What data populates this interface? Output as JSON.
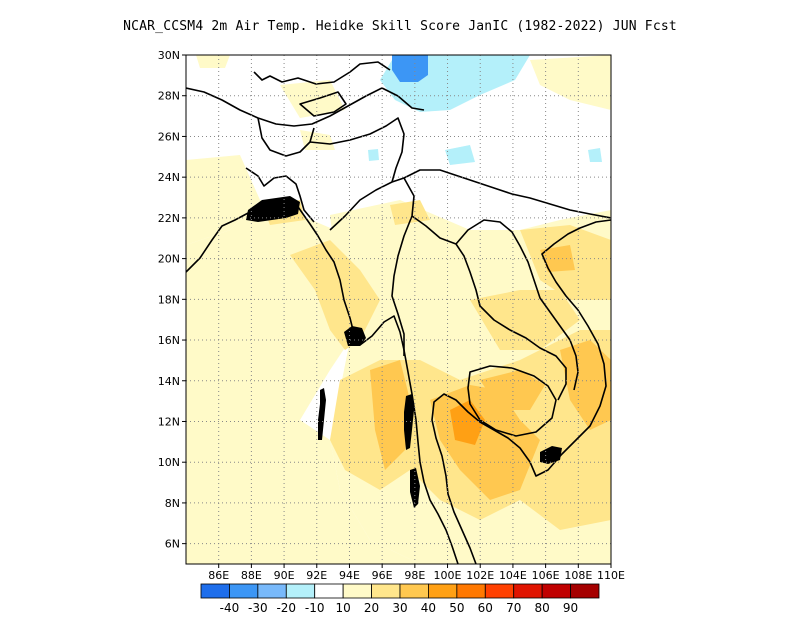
{
  "title": "NCAR_CCSM4  2m Air Temp. Heidke Skill Score JanIC (1982-2022) JUN Fcst",
  "map": {
    "lon_range": [
      84,
      110
    ],
    "lat_range": [
      5,
      30
    ],
    "lon_ticks": [
      {
        "value": 86,
        "label": "86E"
      },
      {
        "value": 88,
        "label": "88E"
      },
      {
        "value": 90,
        "label": "90E"
      },
      {
        "value": 92,
        "label": "92E"
      },
      {
        "value": 94,
        "label": "94E"
      },
      {
        "value": 96,
        "label": "96E"
      },
      {
        "value": 98,
        "label": "98E"
      },
      {
        "value": 100,
        "label": "100E"
      },
      {
        "value": 102,
        "label": "102E"
      },
      {
        "value": 104,
        "label": "104E"
      },
      {
        "value": 106,
        "label": "106E"
      },
      {
        "value": 108,
        "label": "108E"
      },
      {
        "value": 110,
        "label": "110E"
      }
    ],
    "lat_ticks": [
      {
        "value": 6,
        "label": "6N"
      },
      {
        "value": 8,
        "label": "8N"
      },
      {
        "value": 10,
        "label": "10N"
      },
      {
        "value": 12,
        "label": "12N"
      },
      {
        "value": 14,
        "label": "14N"
      },
      {
        "value": 16,
        "label": "16N"
      },
      {
        "value": 18,
        "label": "18N"
      },
      {
        "value": 20,
        "label": "20N"
      },
      {
        "value": 22,
        "label": "22N"
      },
      {
        "value": 24,
        "label": "24N"
      },
      {
        "value": 26,
        "label": "26N"
      },
      {
        "value": 28,
        "label": "28N"
      },
      {
        "value": 30,
        "label": "30N"
      }
    ],
    "grid": "dotted",
    "colorbar": {
      "colors": [
        "#1e6eeb",
        "#3c96f5",
        "#78b9fa",
        "#b4f0fa",
        "#ffffff",
        "#fffac8",
        "#ffe68c",
        "#ffc850",
        "#ffa014",
        "#ff7800",
        "#ff4000",
        "#e01400",
        "#c00000",
        "#a50000"
      ],
      "labels": [
        "-40",
        "-30",
        "-20",
        "-10",
        "10",
        "20",
        "30",
        "40",
        "50",
        "60",
        "70",
        "80",
        "90"
      ]
    }
  },
  "chart_data": {
    "type": "heatmap",
    "title": "NCAR_CCSM4  2m Air Temp. Heidke Skill Score JanIC (1982-2022) JUN Fcst",
    "x_ticks": [
      "86E",
      "88E",
      "90E",
      "92E",
      "94E",
      "96E",
      "98E",
      "100E",
      "102E",
      "104E",
      "106E",
      "108E",
      "110E"
    ],
    "y_ticks": [
      "6N",
      "8N",
      "10N",
      "12N",
      "14N",
      "16N",
      "18N",
      "20N",
      "22N",
      "24N",
      "26N",
      "28N",
      "30N"
    ],
    "xlim": [
      84,
      110
    ],
    "ylim": [
      5,
      30
    ],
    "legend": "bottom",
    "legend_position": "bottom",
    "grid": true,
    "cells": [
      {
        "lon": [
          86,
          92
        ],
        "lat": [
          20,
          25
        ],
        "value": 10
      },
      {
        "lon": [
          84,
          87
        ],
        "lat": [
          10,
          19
        ],
        "value": 10
      },
      {
        "lon": [
          92,
          96
        ],
        "lat": [
          5,
          17
        ],
        "value": 10
      },
      {
        "lon": [
          88,
          96
        ],
        "lat": [
          5,
          11
        ],
        "value": 15
      },
      {
        "lon": [
          94,
          98
        ],
        "lat": [
          7,
          16
        ],
        "value": 20
      },
      {
        "lon": [
          96,
          99
        ],
        "lat": [
          9,
          13
        ],
        "value": 30
      },
      {
        "lon": [
          99,
          103
        ],
        "lat": [
          11,
          14
        ],
        "value": 20
      },
      {
        "lon": [
          100,
          104
        ],
        "lat": [
          8,
          13
        ],
        "value": 30
      },
      {
        "lon": [
          101,
          103
        ],
        "lat": [
          10,
          12
        ],
        "value": 40
      },
      {
        "lon": [
          104,
          110
        ],
        "lat": [
          11,
          17
        ],
        "value": 30
      },
      {
        "lon": [
          103,
          110
        ],
        "lat": [
          5,
          11
        ],
        "value": 20
      },
      {
        "lon": [
          104,
          110
        ],
        "lat": [
          17,
          22
        ],
        "value": 20
      },
      {
        "lon": [
          100,
          104
        ],
        "lat": [
          14,
          20
        ],
        "value": 20
      },
      {
        "lon": [
          94,
          99
        ],
        "lat": [
          18,
          24
        ],
        "value": 10
      },
      {
        "lon": [
          97,
          99
        ],
        "lat": [
          27.5,
          30
        ],
        "value": -30
      },
      {
        "lon": [
          99,
          102
        ],
        "lat": [
          27,
          29
        ],
        "value": -10
      },
      {
        "lon": [
          100,
          102
        ],
        "lat": [
          24.5,
          25.5
        ],
        "value": -10
      },
      {
        "lon": [
          107,
          110
        ],
        "lat": [
          28,
          30
        ],
        "value": 10
      }
    ]
  }
}
